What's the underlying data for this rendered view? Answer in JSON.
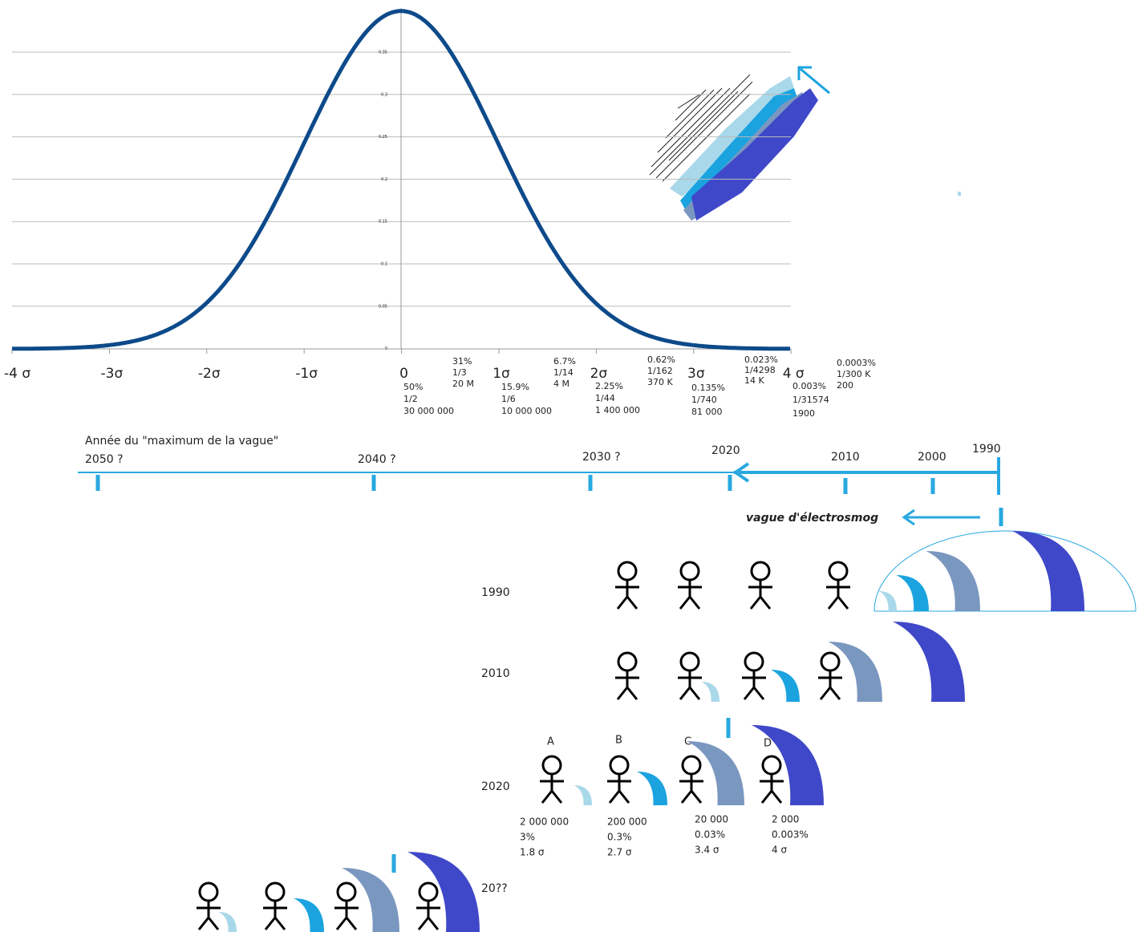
{
  "gaussian": {
    "x_labels": [
      "-4 σ",
      "-3σ",
      "-2σ",
      "-1σ",
      "0",
      "1σ",
      "2σ",
      "3σ",
      "4 σ"
    ],
    "y_labels": [
      "0.35",
      "0.3",
      "0.25",
      "0.2",
      "0.15",
      "0.1",
      "0.05",
      "0"
    ],
    "annotations": [
      [
        "50%",
        "1/2",
        "30 000 000"
      ],
      [
        "31%",
        "1/3",
        "20 M"
      ],
      [
        "15.9%",
        "1/6",
        "10 000 000"
      ],
      [
        "6.7%",
        "1/14",
        "4 M"
      ],
      [
        "2.25%",
        "1/44",
        "1 400 000"
      ],
      [
        "0.62%",
        "1/162",
        "370 K"
      ],
      [
        "0.135%",
        "1/740",
        "81 000"
      ],
      [
        "0.023%",
        "1/4298",
        "14 K"
      ],
      [
        "0.003%",
        "1/31574",
        "1900"
      ],
      [
        "0.0003%",
        "1/300 K",
        "200"
      ]
    ]
  },
  "timeline": {
    "title": "Année du \"maximum de la vague\"",
    "years": [
      "2050 ?",
      "2040 ?",
      "2030 ?",
      "2020",
      "2010",
      "2000",
      "1990"
    ],
    "wave_label": "vague d'électrosmog"
  },
  "scenarios": {
    "rows": [
      "1990",
      "2010",
      "2020",
      "20??"
    ],
    "letters": [
      "A",
      "B",
      "C",
      "D"
    ],
    "stats": [
      [
        "2 000 000",
        "3%",
        "1.8 σ"
      ],
      [
        "200 000",
        "0.3%",
        "2.7 σ"
      ],
      [
        "20 000",
        "0.03%",
        "3.4 σ"
      ],
      [
        "2 000",
        "0.003%",
        "4 σ"
      ]
    ]
  }
}
